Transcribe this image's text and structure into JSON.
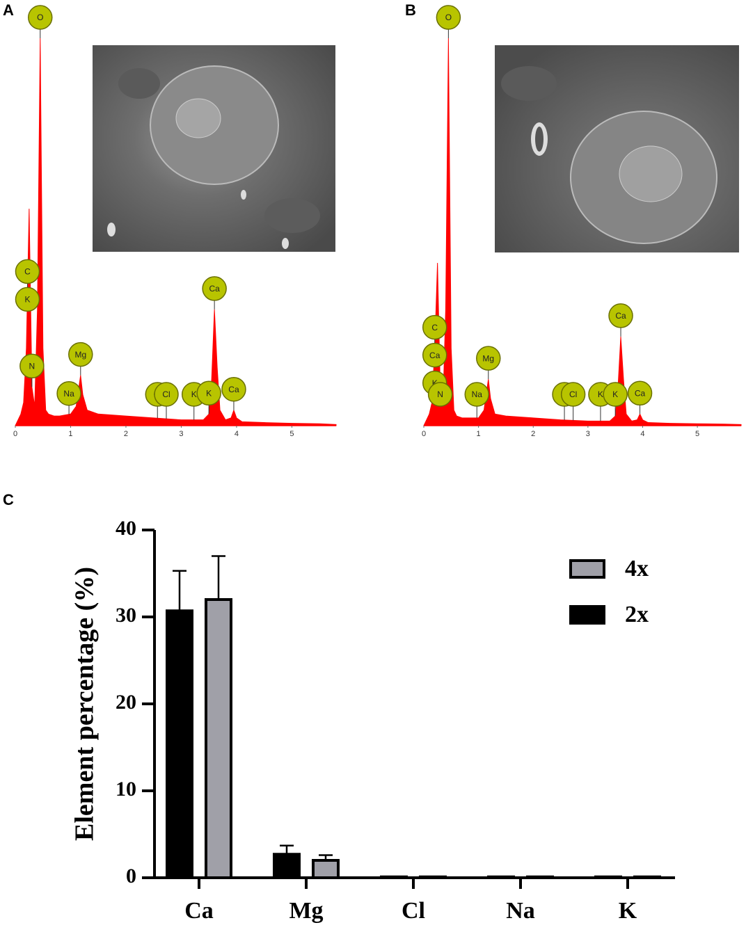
{
  "chart_data": [
    {
      "type": "area",
      "label": "A",
      "color": "#ff0000",
      "x": [
        0,
        0.1,
        0.15,
        0.2,
        0.25,
        0.3,
        0.35,
        0.4,
        0.45,
        0.5,
        0.55,
        0.6,
        0.7,
        0.8,
        1.0,
        1.1,
        1.15,
        1.18,
        1.22,
        1.3,
        1.5,
        2.0,
        2.5,
        3.0,
        3.4,
        3.5,
        3.55,
        3.6,
        3.65,
        3.7,
        3.8,
        3.9,
        3.95,
        4.0,
        4.1,
        4.5,
        5.0,
        5.5,
        5.8
      ],
      "values": [
        0,
        3,
        6,
        20,
        56,
        10,
        5,
        30,
        100,
        20,
        4,
        3,
        2.5,
        2.5,
        3,
        5,
        10,
        13,
        8,
        4,
        3,
        2.5,
        2,
        1.5,
        1.5,
        3,
        12,
        30,
        15,
        4,
        1.5,
        2,
        4,
        2,
        1,
        0.8,
        0.6,
        0.5,
        0.3
      ],
      "xlim": [
        0,
        5.8
      ],
      "xticks": [
        0,
        1,
        2,
        3,
        4,
        5
      ],
      "ylim": [
        0,
        100
      ],
      "peaks": [
        {
          "label": "O",
          "x": 0.45
        },
        {
          "label": "C",
          "x": 0.22
        },
        {
          "label": "K",
          "x": 0.22
        },
        {
          "label": "N",
          "x": 0.3
        },
        {
          "label": "Na",
          "x": 0.97
        },
        {
          "label": "Mg",
          "x": 1.18
        },
        {
          "label": "Cl",
          "x": 2.57
        },
        {
          "label": "Cl",
          "x": 2.73
        },
        {
          "label": "K",
          "x": 3.23
        },
        {
          "label": "K",
          "x": 3.5
        },
        {
          "label": "Ca",
          "x": 3.6
        },
        {
          "label": "Ca",
          "x": 3.95
        }
      ]
    },
    {
      "type": "area",
      "label": "B",
      "color": "#ff0000",
      "x": [
        0,
        0.1,
        0.15,
        0.2,
        0.25,
        0.3,
        0.35,
        0.4,
        0.45,
        0.5,
        0.55,
        0.6,
        0.7,
        0.8,
        1.0,
        1.1,
        1.15,
        1.18,
        1.22,
        1.3,
        1.5,
        2.0,
        2.5,
        3.0,
        3.4,
        3.5,
        3.55,
        3.6,
        3.65,
        3.7,
        3.8,
        3.9,
        3.95,
        4.0,
        4.1,
        4.5,
        5.0,
        5.5,
        5.8
      ],
      "values": [
        0,
        3,
        6,
        20,
        42,
        10,
        5,
        30,
        100,
        20,
        4,
        2.5,
        2,
        2,
        2,
        4,
        9,
        12,
        7,
        3,
        2.5,
        2,
        1.5,
        1.2,
        1.2,
        2.5,
        10,
        23,
        12,
        3,
        1.2,
        1.5,
        3,
        1.5,
        0.8,
        0.6,
        0.5,
        0.4,
        0.3
      ],
      "xlim": [
        0,
        5.8
      ],
      "xticks": [
        0,
        1,
        2,
        3,
        4,
        5
      ],
      "ylim": [
        0,
        100
      ],
      "peaks": [
        {
          "label": "O",
          "x": 0.45
        },
        {
          "label": "C",
          "x": 0.2
        },
        {
          "label": "Ca",
          "x": 0.2
        },
        {
          "label": "K",
          "x": 0.2
        },
        {
          "label": "N",
          "x": 0.3
        },
        {
          "label": "Na",
          "x": 0.97
        },
        {
          "label": "Mg",
          "x": 1.18
        },
        {
          "label": "Cl",
          "x": 2.57
        },
        {
          "label": "Cl",
          "x": 2.73
        },
        {
          "label": "K",
          "x": 3.23
        },
        {
          "label": "K",
          "x": 3.5
        },
        {
          "label": "Ca",
          "x": 3.6
        },
        {
          "label": "Ca",
          "x": 3.95
        }
      ]
    },
    {
      "type": "bar",
      "label": "C",
      "y_label": "Element percentage (%)",
      "categories": [
        "Ca",
        "Mg",
        "Cl",
        "Na",
        "K"
      ],
      "series": [
        {
          "name": "2x",
          "color": "#000000",
          "values": [
            30.7,
            2.7,
            0.1,
            0.1,
            0.1
          ],
          "errors": [
            4.6,
            1.0,
            0,
            0,
            0
          ]
        },
        {
          "name": "4x",
          "color": "#a0a0a8",
          "values": [
            32.0,
            2.0,
            0.1,
            0.1,
            0.1
          ],
          "errors": [
            5.0,
            0.6,
            0,
            0,
            0
          ]
        }
      ],
      "ylim": [
        0,
        40
      ],
      "yticks": [
        0,
        10,
        20,
        30,
        40
      ]
    }
  ]
}
